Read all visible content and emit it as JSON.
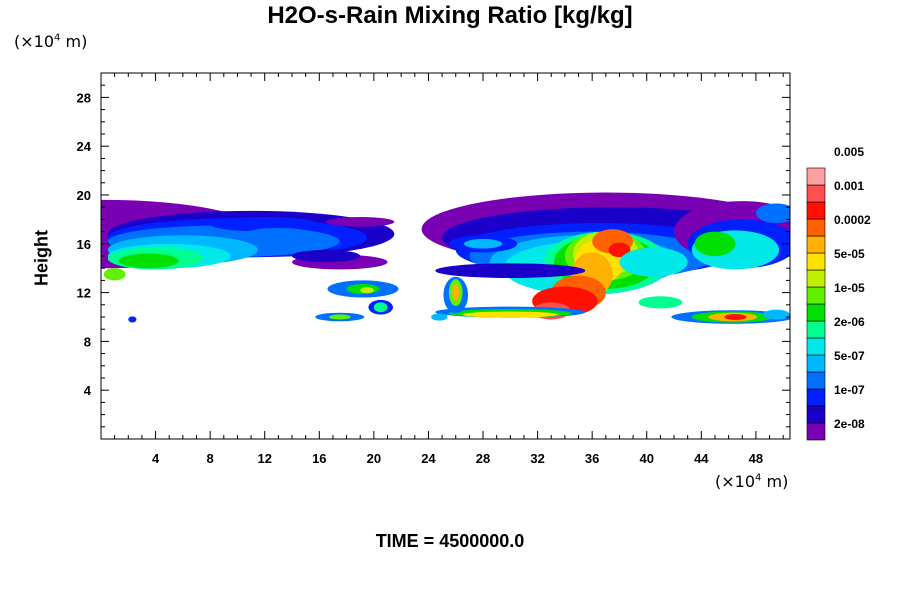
{
  "title": "H2O-s-Rain Mixing Ratio [kg/kg]",
  "y_unit_prefix": "(×10",
  "y_unit_exp": "4",
  "y_unit_suffix": " m)",
  "x_unit_prefix": "(×10",
  "x_unit_exp": "4",
  "x_unit_suffix": " m)",
  "time_label": "TIME = 4500000.0",
  "chart_data": {
    "type": "heatmap",
    "title": "H2O-s-Rain Mixing Ratio [kg/kg]",
    "xlabel": "",
    "ylabel": "Height",
    "x_unit": "×10^4 m",
    "y_unit": "×10^4 m",
    "xlim": [
      0,
      50.5
    ],
    "ylim": [
      0,
      30
    ],
    "x_ticks": [
      4,
      8,
      12,
      16,
      20,
      24,
      28,
      32,
      36,
      40,
      44,
      48
    ],
    "y_ticks": [
      4,
      8,
      12,
      16,
      20,
      24,
      28
    ],
    "colorbar": {
      "levels": [
        "2e-08",
        "1e-07",
        "5e-07",
        "2e-06",
        "1e-05",
        "5e-05",
        "0.0002",
        "0.001",
        "0.005"
      ],
      "colors": [
        "#7a00b4",
        "#1a00c8",
        "#0020ff",
        "#0070ff",
        "#00b8ff",
        "#00e8e8",
        "#00ff90",
        "#00e000",
        "#60f000",
        "#c0f000",
        "#ffe000",
        "#ffb000",
        "#ff6000",
        "#ff1000",
        "#ff5050",
        "#ffa0a0"
      ]
    },
    "regions": [
      {
        "x0": 0,
        "x1": 22,
        "y0": 12,
        "y1": 19.5,
        "peak_level": "5e-05"
      },
      {
        "x0": 1,
        "x1": 22,
        "y0": 9.5,
        "y1": 12,
        "peak_level": "1e-05"
      },
      {
        "x0": 24,
        "x1": 50.5,
        "y0": 9.5,
        "y1": 20.5,
        "peak_level": "0.005"
      },
      {
        "x0": 42,
        "x1": 50.5,
        "y0": 9.5,
        "y1": 11,
        "peak_level": "0.001"
      }
    ]
  }
}
